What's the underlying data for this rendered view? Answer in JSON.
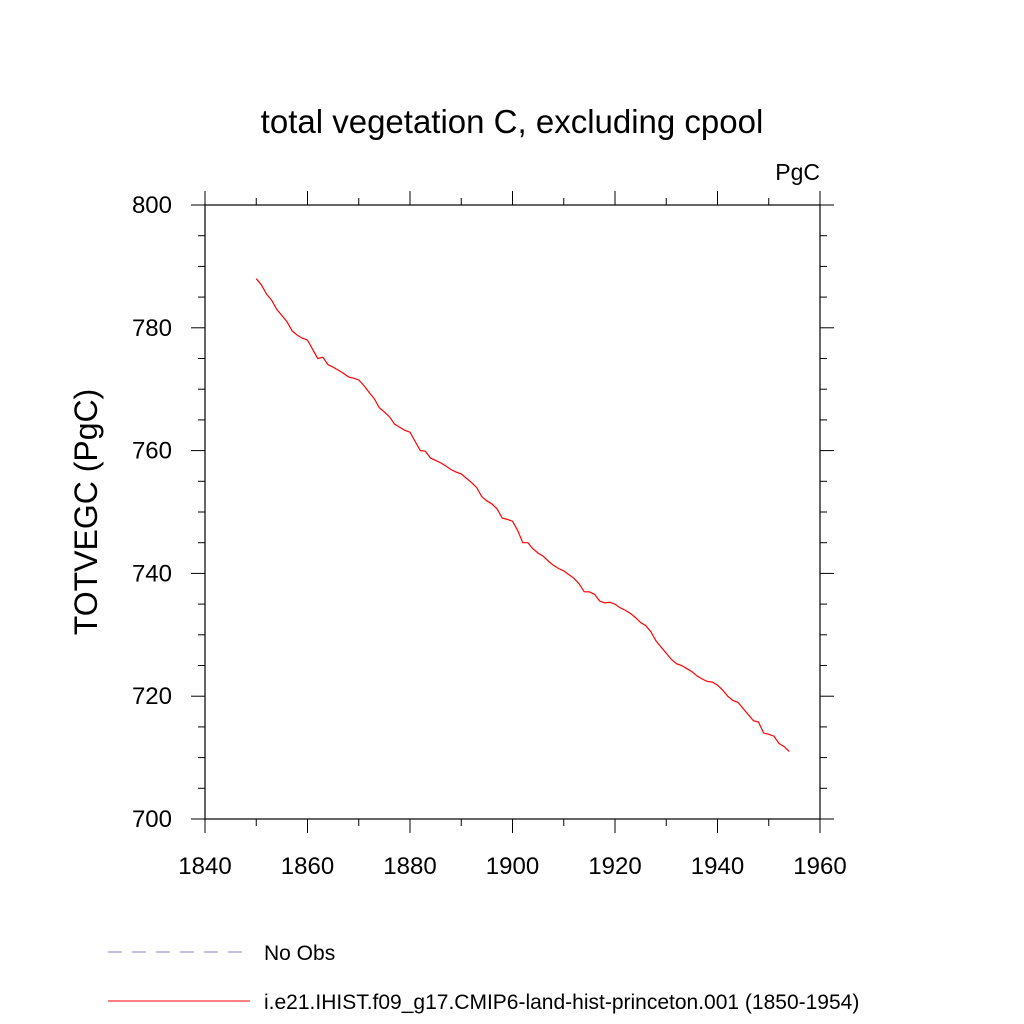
{
  "chart_data": {
    "type": "line",
    "title": "total vegetation C, excluding cpool",
    "units": "PgC",
    "ylabel": "TOTVEGC  (PgC)",
    "xlabel": "",
    "xlim": [
      1840,
      1960
    ],
    "ylim": [
      700,
      800
    ],
    "xticks": [
      "1840",
      "1860",
      "1880",
      "1900",
      "1920",
      "1940",
      "1960"
    ],
    "yticks": [
      "700",
      "720",
      "740",
      "760",
      "780",
      "800"
    ],
    "grid": false,
    "legend_placement": "bottom",
    "series": [
      {
        "name": "No Obs",
        "color": "#8a80c0",
        "style": "dashed",
        "x": [],
        "y": []
      },
      {
        "name": "i.e21.IHIST.f09_g17.CMIP6-land-hist-princeton.001 (1850-1954)",
        "color": "#ff0000",
        "style": "solid",
        "x": [
          1850,
          1851,
          1852,
          1853,
          1854,
          1855,
          1856,
          1857,
          1858,
          1859,
          1860,
          1861,
          1862,
          1863,
          1864,
          1865,
          1866,
          1867,
          1868,
          1869,
          1870,
          1871,
          1872,
          1873,
          1874,
          1875,
          1876,
          1877,
          1878,
          1879,
          1880,
          1881,
          1882,
          1883,
          1884,
          1885,
          1886,
          1887,
          1888,
          1889,
          1890,
          1891,
          1892,
          1893,
          1894,
          1895,
          1896,
          1897,
          1898,
          1899,
          1900,
          1901,
          1902,
          1903,
          1904,
          1905,
          1906,
          1907,
          1908,
          1909,
          1910,
          1911,
          1912,
          1913,
          1914,
          1915,
          1916,
          1917,
          1918,
          1919,
          1920,
          1921,
          1922,
          1923,
          1924,
          1925,
          1926,
          1927,
          1928,
          1929,
          1930,
          1931,
          1932,
          1933,
          1934,
          1935,
          1936,
          1937,
          1938,
          1939,
          1940,
          1941,
          1942,
          1943,
          1944,
          1945,
          1946,
          1947,
          1948,
          1949,
          1950,
          1951,
          1952,
          1953,
          1954
        ],
        "y": [
          788,
          787,
          785.5,
          784.5,
          783,
          782,
          781,
          779.5,
          778.8,
          778.3,
          778,
          776.5,
          775,
          775.2,
          774,
          773.6,
          773.1,
          772.6,
          772,
          771.8,
          771.5,
          770.6,
          769.5,
          768.5,
          767,
          766.3,
          765.5,
          764.3,
          763.8,
          763.3,
          763,
          761.5,
          760,
          759.9,
          758.8,
          758.4,
          758,
          757.5,
          756.9,
          756.5,
          756.2,
          755.5,
          754.8,
          754,
          752.5,
          751.8,
          751.3,
          750.5,
          749,
          748.8,
          748.5,
          747,
          745,
          745,
          744,
          743.3,
          742.8,
          742,
          741.3,
          740.8,
          740.4,
          739.8,
          739.2,
          738.3,
          737,
          737,
          736.6,
          735.5,
          735.2,
          735.3,
          735,
          734.4,
          734,
          733.5,
          732.8,
          732,
          731.5,
          730.5,
          729,
          728,
          727,
          726,
          725.3,
          725,
          724.5,
          724,
          723.3,
          722.8,
          722.4,
          722.3,
          721.8,
          721,
          720,
          719.3,
          719,
          718,
          717,
          716,
          715.8,
          714,
          713.8,
          713.5,
          712.3,
          711.8,
          711
        ]
      }
    ]
  }
}
